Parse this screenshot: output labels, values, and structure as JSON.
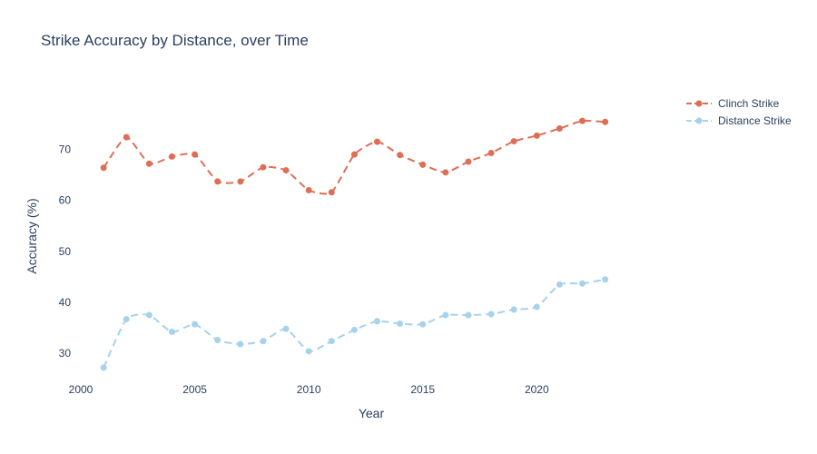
{
  "chart_data": {
    "type": "line",
    "title": "Strike Accuracy by Distance, over Time",
    "xlabel": "Year",
    "ylabel": "Accuracy (%)",
    "x": [
      2001,
      2002,
      2003,
      2004,
      2005,
      2006,
      2007,
      2008,
      2009,
      2010,
      2011,
      2012,
      2013,
      2014,
      2015,
      2016,
      2017,
      2018,
      2019,
      2020,
      2021,
      2022,
      2023
    ],
    "xlim": [
      2000,
      2026
    ],
    "ylim": [
      24.5,
      81.5
    ],
    "x_ticks": [
      "2000",
      "2005",
      "2010",
      "2015",
      "2020"
    ],
    "y_ticks": [
      "30",
      "40",
      "50",
      "60",
      "70"
    ],
    "legend_position": "top-right",
    "grid": false,
    "series": [
      {
        "name": "Clinch Strike",
        "color": "#DE6E56",
        "line_style": "dashed",
        "smoothing": "spline",
        "values": [
          66.4,
          72.4,
          67.2,
          68.6,
          69.0,
          63.7,
          63.7,
          66.5,
          65.9,
          62.0,
          61.6,
          69.0,
          71.5,
          68.9,
          67.0,
          65.5,
          67.6,
          69.3,
          71.6,
          72.7,
          74.1,
          75.6,
          75.4
        ]
      },
      {
        "name": "Distance Strike",
        "color": "#A6D2EC",
        "line_style": "dashed",
        "smoothing": "spline",
        "values": [
          27.2,
          36.7,
          37.5,
          34.2,
          35.7,
          32.6,
          31.8,
          32.4,
          34.8,
          30.4,
          32.4,
          34.6,
          36.3,
          35.8,
          35.7,
          37.5,
          37.5,
          37.7,
          38.6,
          39.1,
          43.5,
          43.7,
          44.5
        ]
      }
    ]
  }
}
